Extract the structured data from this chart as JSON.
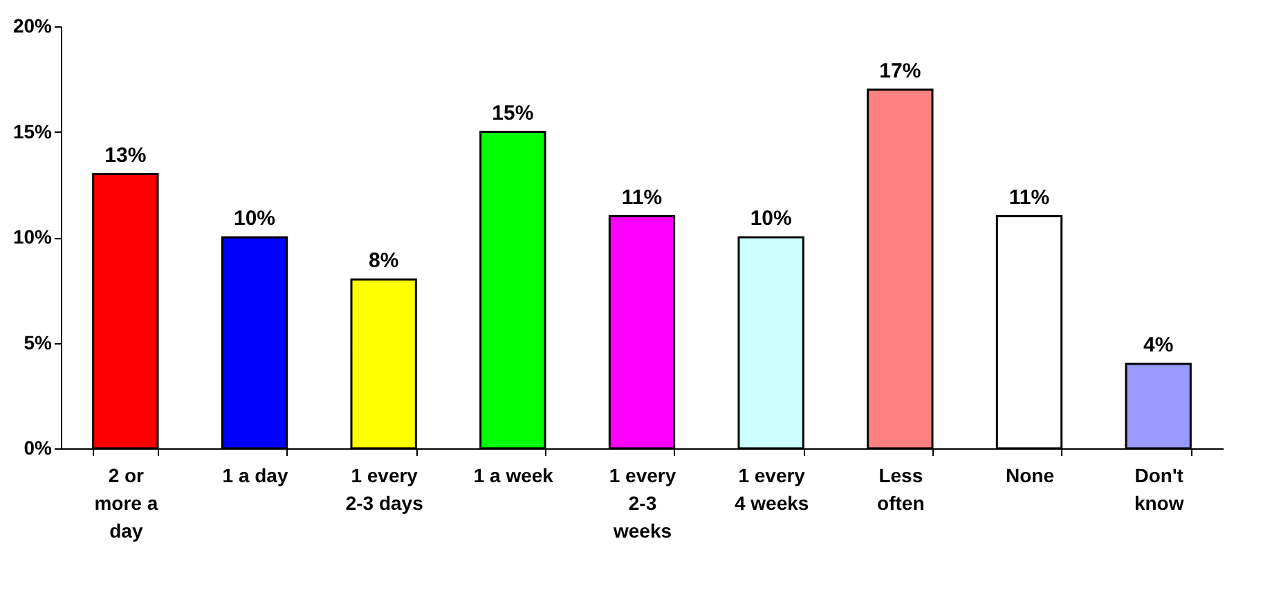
{
  "chart_data": {
    "type": "bar",
    "categories": [
      "2 or more a day",
      "1 a day",
      "1 every 2-3 days",
      "1 a week",
      "1 every 2-3 weeks",
      "1 every 4 weeks",
      "Less often",
      "None",
      "Don't know"
    ],
    "values": [
      13,
      10,
      8,
      15,
      11,
      10,
      17,
      11,
      4
    ],
    "colors": [
      "#ff0000",
      "#0000ff",
      "#ffff00",
      "#00ff00",
      "#ff00ff",
      "#ccffff",
      "#ff8080",
      "#ffffff",
      "#9999ff"
    ],
    "value_labels": [
      "13%",
      "10%",
      "8%",
      "15%",
      "11%",
      "10%",
      "17%",
      "11%",
      "4%"
    ],
    "ylim": [
      0,
      20
    ],
    "yticks": [
      {
        "value": 0,
        "label": "0%"
      },
      {
        "value": 5,
        "label": "5%"
      },
      {
        "value": 10,
        "label": "10%"
      },
      {
        "value": 15,
        "label": "15%"
      },
      {
        "value": 20,
        "label": "20%"
      }
    ],
    "grid": false
  }
}
